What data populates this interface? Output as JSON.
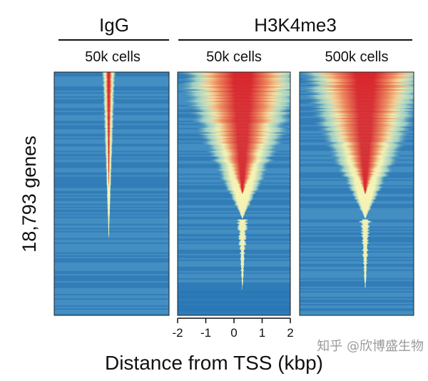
{
  "chart_data": {
    "type": "heatmap",
    "groups": [
      {
        "label": "IgG",
        "panels": [
          0
        ]
      },
      {
        "label": "H3K4me3",
        "panels": [
          1,
          2
        ]
      }
    ],
    "panels": [
      {
        "label": "50k cells",
        "signal": "weak",
        "peak_center_kbp": -0.1
      },
      {
        "label": "50k cells",
        "signal": "strong",
        "peak_center_kbp": 0.3
      },
      {
        "label": "500k cells",
        "signal": "strong",
        "peak_center_kbp": 0.3
      }
    ],
    "ylabel": "18,793 genes",
    "xlabel": "Distance from TSS (kbp)",
    "xlim": [
      -2,
      2
    ],
    "xticks": [
      "-2",
      "-1",
      "0",
      "1",
      "2"
    ],
    "xtick_values": [
      -2,
      -1,
      0,
      1,
      2
    ],
    "colormap": {
      "low": "#2a73b5",
      "mid": "#f7f4b4",
      "high": "#d7262d"
    },
    "watermark": "知乎 @欣博盛生物"
  }
}
